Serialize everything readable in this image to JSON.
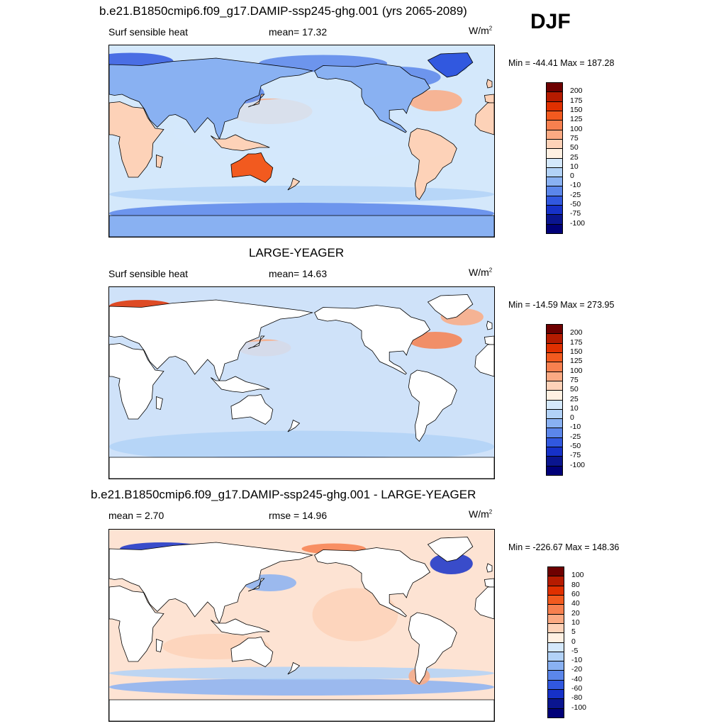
{
  "season": "DJF",
  "panels": [
    {
      "title": "b.e21.B1850cmip6.f09_g17.DAMIP-ssp245-ghg.001 (yrs 2065-2089)",
      "left_label": "Surf sensible heat",
      "center_label": "mean=  17.32",
      "units": "W/m",
      "units_sup": "2",
      "minmax": "Min = -44.41 Max = 187.28",
      "colorbar_labels": [
        "200",
        "175",
        "150",
        "125",
        "100",
        "75",
        "50",
        "25",
        "10",
        "0",
        "-10",
        "-25",
        "-50",
        "-75",
        "-100"
      ],
      "colorbar_colors": [
        "#6e0000",
        "#b51b00",
        "#e03000",
        "#f25a1f",
        "#f7804f",
        "#fbaa83",
        "#fdd2b8",
        "#fff0e2",
        "#d4e8fb",
        "#b2d2f7",
        "#89b1f2",
        "#5b86ea",
        "#3158df",
        "#1631c8",
        "#0a158f",
        "#000078"
      ],
      "ocean": "#d4e8fb",
      "land_fill": "#fdd2b8"
    },
    {
      "title": "LARGE-YEAGER",
      "left_label": "Surf sensible heat",
      "center_label": "mean=  14.63",
      "units": "W/m",
      "units_sup": "2",
      "minmax": "Min = -14.59 Max = 273.95",
      "colorbar_labels": [
        "200",
        "175",
        "150",
        "125",
        "100",
        "75",
        "50",
        "25",
        "10",
        "0",
        "-10",
        "-25",
        "-50",
        "-75",
        "-100"
      ],
      "colorbar_colors": [
        "#6e0000",
        "#b51b00",
        "#e03000",
        "#f25a1f",
        "#f7804f",
        "#fbaa83",
        "#fdd2b8",
        "#fff0e2",
        "#d4e8fb",
        "#b2d2f7",
        "#89b1f2",
        "#5b86ea",
        "#3158df",
        "#1631c8",
        "#0a158f",
        "#000078"
      ],
      "ocean": "#cfe2f9",
      "land_fill": "#ffffff"
    },
    {
      "title": "b.e21.B1850cmip6.f09_g17.DAMIP-ssp245-ghg.001 - LARGE-YEAGER",
      "left_label": "mean =   2.70",
      "center_label": "rmse =  14.96",
      "units": "W/m",
      "units_sup": "2",
      "minmax": "Min = -226.67 Max = 148.36",
      "colorbar_labels": [
        "100",
        "80",
        "60",
        "40",
        "20",
        "10",
        "5",
        "0",
        "-5",
        "-10",
        "-20",
        "-40",
        "-60",
        "-80",
        "-100"
      ],
      "colorbar_colors": [
        "#6e0000",
        "#b51b00",
        "#e03000",
        "#f25a1f",
        "#f7804f",
        "#fbaa83",
        "#fdd2b8",
        "#fff0e2",
        "#d4e8fb",
        "#b2d2f7",
        "#89b1f2",
        "#5b86ea",
        "#3158df",
        "#1631c8",
        "#0a158f",
        "#000078"
      ],
      "ocean": "#fde3d3",
      "land_fill": "#ffffff"
    }
  ],
  "chart_data": [
    {
      "type": "heatmap",
      "title": "b.e21.B1850cmip6.f09_g17.DAMIP-ssp245-ghg.001 (yrs 2065-2089)",
      "variable": "Surf sensible heat",
      "units": "W/m2",
      "mean": 17.32,
      "min": -44.41,
      "max": 187.28,
      "contour_levels": [
        -100,
        -75,
        -50,
        -25,
        -10,
        0,
        10,
        25,
        50,
        75,
        100,
        125,
        150,
        175,
        200
      ]
    },
    {
      "type": "heatmap",
      "title": "LARGE-YEAGER",
      "variable": "Surf sensible heat",
      "units": "W/m2",
      "mean": 14.63,
      "min": -14.59,
      "max": 273.95,
      "contour_levels": [
        -100,
        -75,
        -50,
        -25,
        -10,
        0,
        10,
        25,
        50,
        75,
        100,
        125,
        150,
        175,
        200
      ]
    },
    {
      "type": "heatmap",
      "title": "b.e21.B1850cmip6.f09_g17.DAMIP-ssp245-ghg.001 - LARGE-YEAGER",
      "units": "W/m2",
      "mean": 2.7,
      "rmse": 14.96,
      "min": -226.67,
      "max": 148.36,
      "contour_levels": [
        -100,
        -80,
        -60,
        -40,
        -20,
        -10,
        -5,
        0,
        5,
        10,
        20,
        40,
        60,
        80,
        100
      ]
    }
  ]
}
